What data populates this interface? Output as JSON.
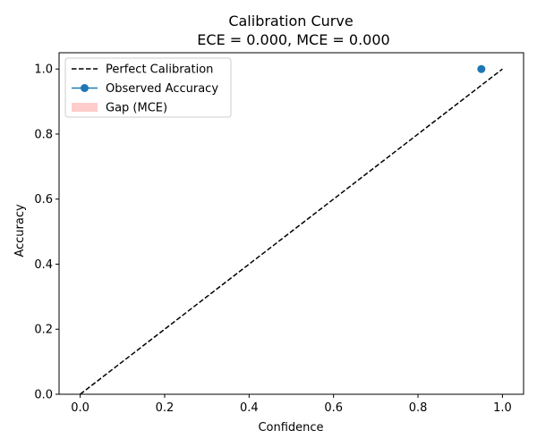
{
  "chart_data": {
    "type": "line",
    "title": "Calibration Curve",
    "subtitle": "ECE = 0.000, MCE = 0.000",
    "xlabel": "Confidence",
    "ylabel": "Accuracy",
    "xlim": [
      -0.05,
      1.05
    ],
    "ylim": [
      0.0,
      1.05
    ],
    "xticks": [
      0.0,
      0.2,
      0.4,
      0.6,
      0.8,
      1.0
    ],
    "yticks": [
      0.0,
      0.2,
      0.4,
      0.6,
      0.8,
      1.0
    ],
    "xtick_labels": [
      "0.0",
      "0.2",
      "0.4",
      "0.6",
      "0.8",
      "1.0"
    ],
    "ytick_labels": [
      "0.0",
      "0.2",
      "0.4",
      "0.6",
      "0.8",
      "1.0"
    ],
    "grid": false,
    "legend_position": "upper-left",
    "series": [
      {
        "name": "Perfect Calibration",
        "style": "dashed-line",
        "color": "#000000",
        "x": [
          0.0,
          1.0
        ],
        "y": [
          0.0,
          1.0
        ]
      },
      {
        "name": "Observed Accuracy",
        "style": "line-with-markers",
        "color": "#1f77b4",
        "x": [
          0.95
        ],
        "y": [
          1.0
        ]
      },
      {
        "name": "Gap (MCE)",
        "style": "filled-area",
        "color": "#ffcccc",
        "x": [],
        "y": []
      }
    ]
  }
}
